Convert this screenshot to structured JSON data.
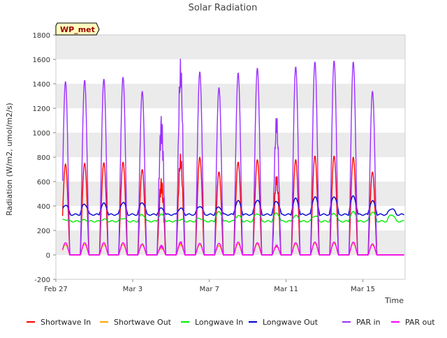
{
  "chart_data": {
    "type": "line",
    "title": "Solar Radiation",
    "site_badge": "WP_met",
    "xlabel": "Time",
    "ylabel": "Radiation (W/m2, umol/m2/s)",
    "ylim": [
      -200,
      1800
    ],
    "y_ticks": [
      -200,
      0,
      200,
      400,
      600,
      800,
      1000,
      1200,
      1400,
      1600,
      1800
    ],
    "x_range_days": [
      0,
      18.2
    ],
    "x_ticks": [
      {
        "label": "Feb 27",
        "day": 0
      },
      {
        "label": "Mar 3",
        "day": 4
      },
      {
        "label": "Mar 7",
        "day": 8
      },
      {
        "label": "Mar 11",
        "day": 12
      },
      {
        "label": "Mar 15",
        "day": 16
      }
    ],
    "grid": "horizontal bands",
    "legend_position": "bottom",
    "days": [
      "Feb 27",
      "Feb 28",
      "Feb 29",
      "Mar 1",
      "Mar 2",
      "Mar 3",
      "Mar 4",
      "Mar 5",
      "Mar 6",
      "Mar 7",
      "Mar 8",
      "Mar 9",
      "Mar 10",
      "Mar 11",
      "Mar 12",
      "Mar 13",
      "Mar 14",
      "Mar 15"
    ],
    "series": [
      {
        "name": "Shortwave In",
        "color": "#ff0000",
        "daily_peak": [
          745,
          750,
          755,
          760,
          700,
          640,
          830,
          800,
          680,
          760,
          780,
          660,
          780,
          810,
          810,
          800,
          680,
          0
        ],
        "night_value": 0
      },
      {
        "name": "Shortwave Out",
        "color": "#ffa500",
        "daily_peak": [
          85,
          85,
          85,
          85,
          80,
          70,
          90,
          85,
          75,
          90,
          90,
          75,
          90,
          95,
          95,
          95,
          80,
          0
        ],
        "night_value": 0
      },
      {
        "name": "Longwave In",
        "color": "#00ee00",
        "daily_peak": [
          290,
          285,
          290,
          300,
          330,
          330,
          290,
          300,
          350,
          320,
          340,
          340,
          320,
          320,
          340,
          350,
          350,
          330
        ],
        "night_value": 275
      },
      {
        "name": "Longwave Out",
        "color": "#0000cc",
        "daily_peak": [
          410,
          415,
          420,
          430,
          430,
          380,
          380,
          400,
          390,
          440,
          450,
          440,
          460,
          475,
          480,
          480,
          440,
          380
        ],
        "night_value": 330
      },
      {
        "name": "PAR in",
        "color": "#9b30ff",
        "daily_peak": [
          1420,
          1430,
          1440,
          1455,
          1340,
          1160,
          1610,
          1500,
          1370,
          1490,
          1530,
          1150,
          1540,
          1580,
          1590,
          1580,
          1340,
          0
        ],
        "night_value": 0
      },
      {
        "name": "PAR out",
        "color": "#ff00ff",
        "daily_peak": [
          100,
          100,
          100,
          100,
          90,
          80,
          110,
          95,
          95,
          105,
          100,
          80,
          100,
          105,
          105,
          105,
          90,
          0
        ],
        "night_value": 0
      }
    ]
  }
}
